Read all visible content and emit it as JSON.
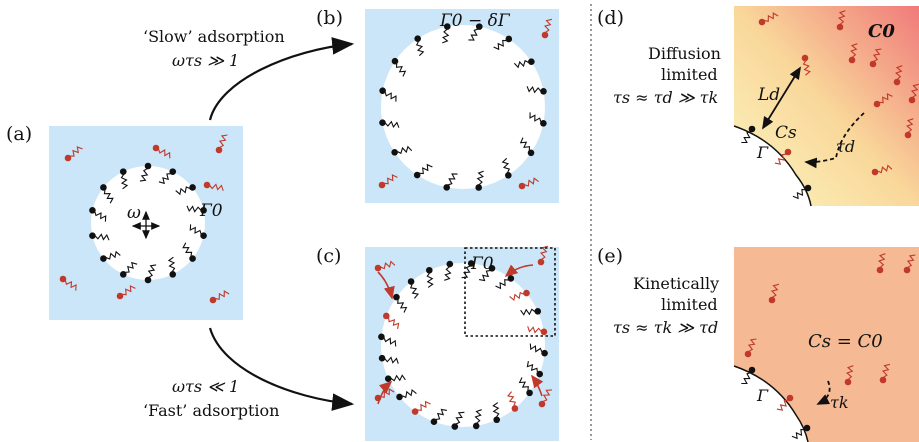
{
  "panels": {
    "a": {
      "tag": "(a)",
      "omega": "ω",
      "gamma": "Γ0"
    },
    "b": {
      "tag": "(b)",
      "gamma": "Γ0 − δΓ"
    },
    "c": {
      "tag": "(c)",
      "gamma": "Γ0"
    },
    "d": {
      "tag": "(d)",
      "title1": "Diffusion",
      "title2": "limited",
      "relation": "τs ≈ τd ≫ τk",
      "Ld": "Ld",
      "Cs": "Cs",
      "C0": "C0",
      "taud": "τd",
      "gamma": "Γ"
    },
    "e": {
      "tag": "(e)",
      "title1": "Kinetically",
      "title2": "limited",
      "relation": "τs ≈ τk ≫ τd",
      "eq": "Cs = C0",
      "tauk": "τk",
      "gamma": "Γ"
    }
  },
  "arrows": {
    "slow": {
      "label": "‘Slow’ adsorption",
      "cond": "ωτs ≫ 1"
    },
    "fast": {
      "label": "‘Fast’ adsorption",
      "cond": "ωτs ≪ 1"
    }
  },
  "colors": {
    "water": "#cbe6f8",
    "surfactant_red": "#c0392b",
    "surfactant_black": "#111111",
    "conc_high": "#f08080",
    "conc_low": "#fbf4b8",
    "uniform": "#f5b993"
  }
}
